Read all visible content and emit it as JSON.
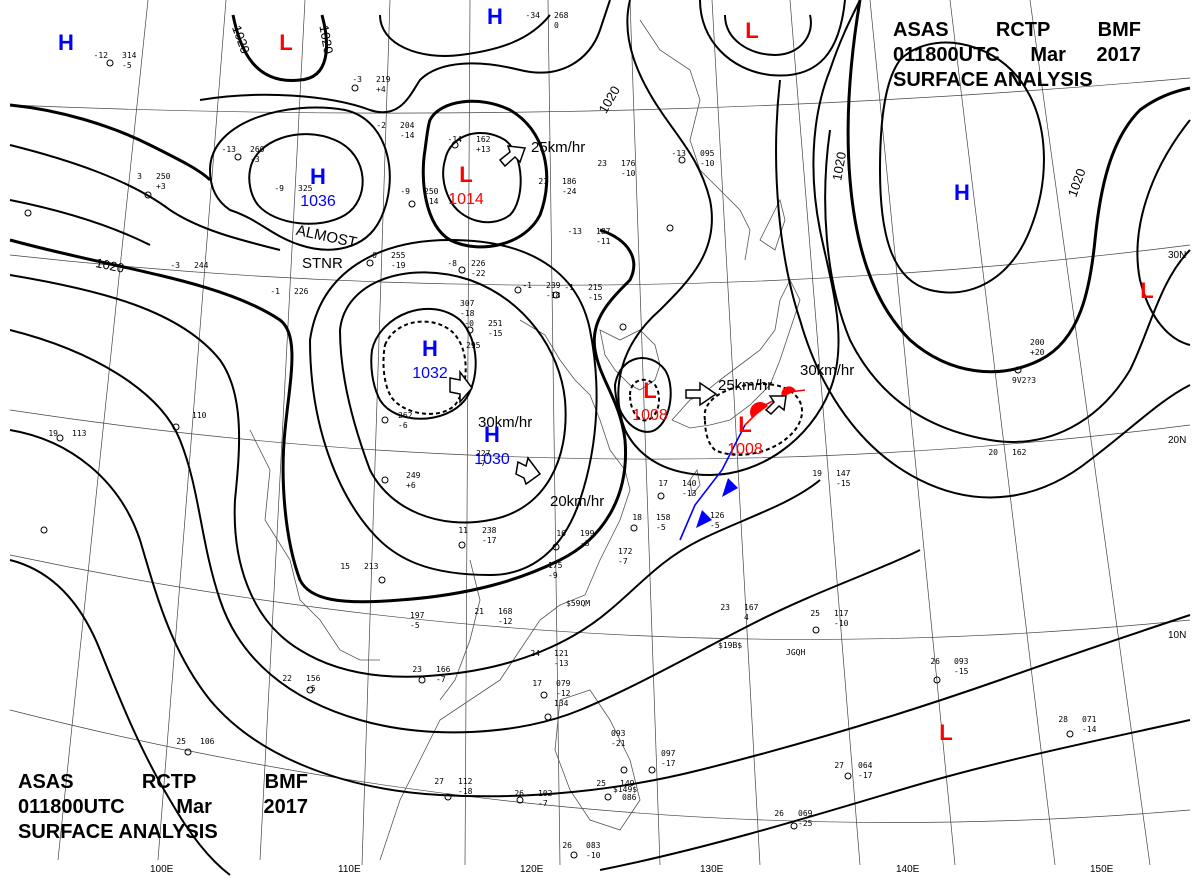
{
  "header": {
    "line1": [
      "ASAS",
      "RCTP",
      "BMF"
    ],
    "line2": [
      "011800UTC",
      "Mar",
      "2017"
    ],
    "line3": "SURFACE ANALYSIS"
  },
  "pressure_systems": [
    {
      "type": "H",
      "color": "#0000ff",
      "value": ""
    },
    {
      "type": "L",
      "color": "#ff0000",
      "value": ""
    },
    {
      "type": "L",
      "color": "#ff0000",
      "value": ""
    },
    {
      "type": "H",
      "color": "#0000ff",
      "value": ""
    },
    {
      "type": "H",
      "color": "#0000ff",
      "value": "1036"
    },
    {
      "type": "L",
      "color": "#ff0000",
      "value": "1014"
    },
    {
      "type": "H",
      "color": "#0000ff",
      "value": "1032"
    },
    {
      "type": "H",
      "color": "#0000ff",
      "value": "1030"
    },
    {
      "type": "L",
      "color": "#ff0000",
      "value": "1008"
    },
    {
      "type": "L",
      "color": "#ff0000",
      "value": "1008"
    },
    {
      "type": "H",
      "color": "#0000ff",
      "value": ""
    },
    {
      "type": "L",
      "color": "#ff0000",
      "value": ""
    },
    {
      "type": "L",
      "color": "#ff0000",
      "value": ""
    }
  ],
  "isobar_labels": [
    "1020",
    "1020",
    "1020",
    "1020",
    "1020",
    "1020"
  ],
  "motion_labels": [
    "25km/hr",
    "30km/hr",
    "20km/hr",
    "25km/hr",
    "30km/hr"
  ],
  "annotations": {
    "almost_stnr": [
      "ALMOST",
      "STNR"
    ]
  },
  "latitude_labels": [
    "30N",
    "20N",
    "10N"
  ],
  "longitude_labels": [
    "100E",
    "110E",
    "120E",
    "130E",
    "140E",
    "150E"
  ],
  "station_plots": [
    {
      "t": "-12",
      "p": "314",
      "d": "-5"
    },
    {
      "t": "-34",
      "p": "268",
      "d": "0"
    },
    {
      "t": "-3",
      "p": "219",
      "d": "+4"
    },
    {
      "t": "-2",
      "p": "204",
      "d": "-14"
    },
    {
      "t": "-14",
      "p": "162",
      "d": "+13"
    },
    {
      "t": "-13",
      "p": "260",
      "d": "-3"
    },
    {
      "t": "-9",
      "p": "325",
      "d": ""
    },
    {
      "t": "-9",
      "p": "250",
      "d": "-14"
    },
    {
      "t": "3",
      "p": "250",
      "d": "+3"
    },
    {
      "t": "-3",
      "p": "244",
      "d": ""
    },
    {
      "t": "-1",
      "p": "226",
      "d": ""
    },
    {
      "t": "-8",
      "p": "226",
      "d": "-22"
    },
    {
      "t": "0",
      "p": "255",
      "d": "-19"
    },
    {
      "t": "21",
      "p": "186",
      "d": "-24"
    },
    {
      "t": "23",
      "p": "176",
      "d": "-10"
    },
    {
      "t": "-13",
      "p": "187",
      "d": "-11"
    },
    {
      "t": "-13",
      "p": "095",
      "d": "-10"
    },
    {
      "t": "-1",
      "p": "239",
      "d": "-18"
    },
    {
      "t": "-1",
      "p": "215",
      "d": "-15"
    },
    {
      "t": "",
      "p": "307",
      "d": "-18"
    },
    {
      "t": "-0",
      "p": "251",
      "d": "-15"
    },
    {
      "t": "",
      "p": "295",
      "d": ""
    },
    {
      "t": "",
      "p": "262",
      "d": "-6"
    },
    {
      "t": "",
      "p": "249",
      "d": "+6"
    },
    {
      "t": "",
      "p": "227",
      "d": "-7"
    },
    {
      "t": "11",
      "p": "238",
      "d": "-17"
    },
    {
      "t": "15",
      "p": "213",
      "d": ""
    },
    {
      "t": "",
      "p": "197",
      "d": "-5"
    },
    {
      "t": "21",
      "p": "168",
      "d": "-12"
    },
    {
      "t": "23",
      "p": "166",
      "d": "-7"
    },
    {
      "t": "22",
      "p": "156",
      "d": "-5"
    },
    {
      "t": "16",
      "p": "199",
      "d": "-3"
    },
    {
      "t": "",
      "p": "175",
      "d": "-9"
    },
    {
      "t": "",
      "p": "172",
      "d": "-7"
    },
    {
      "t": "17",
      "p": "140",
      "d": "-13"
    },
    {
      "t": "18",
      "p": "158",
      "d": "-5"
    },
    {
      "t": "",
      "p": "126",
      "d": "-5"
    },
    {
      "t": "19",
      "p": "113",
      "d": ""
    },
    {
      "t": "",
      "p": "110",
      "d": ""
    },
    {
      "t": "19",
      "p": "147",
      "d": "-15"
    },
    {
      "t": "23",
      "p": "167",
      "d": "4"
    },
    {
      "t": "25",
      "p": "117",
      "d": "-10"
    },
    {
      "t": "26",
      "p": "093",
      "d": "-15"
    },
    {
      "t": "",
      "p": "200",
      "d": "+20"
    },
    {
      "t": "20",
      "p": "162",
      "d": ""
    },
    {
      "t": "24",
      "p": "121",
      "d": "-13"
    },
    {
      "t": "17",
      "p": "079",
      "d": "-12"
    },
    {
      "t": "",
      "p": "134",
      "d": ""
    },
    {
      "t": "",
      "p": "093",
      "d": "-21"
    },
    {
      "t": "",
      "p": "097",
      "d": "-17"
    },
    {
      "t": "25",
      "p": "106",
      "d": ""
    },
    {
      "t": "27",
      "p": "112",
      "d": "-18"
    },
    {
      "t": "26",
      "p": "102",
      "d": "-7"
    },
    {
      "t": "25",
      "p": "149",
      "d": ""
    },
    {
      "t": "",
      "p": "086",
      "d": ""
    },
    {
      "t": "26",
      "p": "083",
      "d": "-10"
    },
    {
      "t": "27",
      "p": "064",
      "d": "-17"
    },
    {
      "t": "26",
      "p": "069",
      "d": "-25"
    },
    {
      "t": "28",
      "p": "071",
      "d": "-14"
    }
  ],
  "ship_ids": [
    "$19B$",
    "JGQH",
    "$59QM",
    "$149$",
    "9V2?3"
  ]
}
